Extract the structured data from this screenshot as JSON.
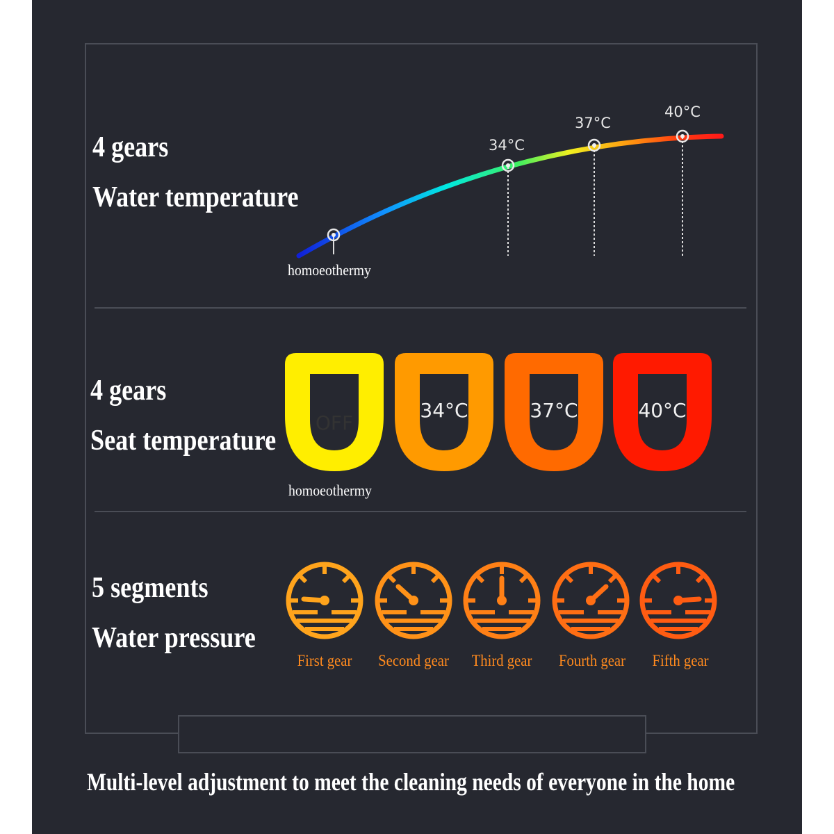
{
  "water_temperature": {
    "heading_count": "4 gears",
    "heading_name": "Water temperature",
    "low_label": "homoeothermy",
    "levels": [
      "34°C",
      "37°C",
      "40°C"
    ]
  },
  "seat_temperature": {
    "heading_count": "4 gears",
    "heading_name": "Seat temperature",
    "low_label": "homoeothermy",
    "seats": [
      {
        "label": "OFF",
        "color": "#ffee00"
      },
      {
        "label": "34°C",
        "color": "#ff9a00"
      },
      {
        "label": "37°C",
        "color": "#ff6a00"
      },
      {
        "label": "40°C",
        "color": "#ff1a00"
      }
    ]
  },
  "water_pressure": {
    "heading_count": "5 segments",
    "heading_name": "Water pressure",
    "gears": [
      {
        "label": "First gear",
        "icon": "gauge-icon",
        "color": "#ffa41c"
      },
      {
        "label": "Second gear",
        "icon": "gauge-icon",
        "color": "#ff9218"
      },
      {
        "label": "Third gear",
        "icon": "gauge-icon",
        "color": "#ff8016"
      },
      {
        "label": "Fourth gear",
        "icon": "gauge-icon",
        "color": "#ff6e14"
      },
      {
        "label": "Fifth gear",
        "icon": "gauge-icon",
        "color": "#ff5c12"
      }
    ]
  },
  "tagline": "Multi-level adjustment to meet the cleaning needs of everyone in the home"
}
